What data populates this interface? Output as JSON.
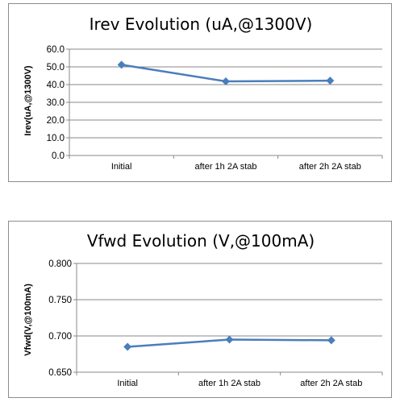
{
  "chart_data": [
    {
      "type": "line",
      "title": "Irev Evolution (uA,@1300V)",
      "xlabel": "",
      "ylabel": "Irev(uA,@1300V)",
      "categories": [
        "Initial",
        "after 1h 2A stab",
        "after 2h 2A stab"
      ],
      "series": [
        {
          "values": [
            51.2,
            41.8,
            42.2
          ]
        }
      ],
      "ylim": [
        0,
        60
      ],
      "yticks": [
        0,
        10,
        20,
        30,
        40,
        50,
        60
      ],
      "ytick_labels": [
        "0.0",
        "10.0",
        "20.0",
        "30.0",
        "40.0",
        "50.0",
        "60.0"
      ],
      "grid": true,
      "legend": "none",
      "color": "#4a7ebb",
      "marker": "diamond"
    },
    {
      "type": "line",
      "title": "Vfwd Evolution (V,@100mA)",
      "xlabel": "",
      "ylabel": "Vfwd(V,@100mA)",
      "categories": [
        "Initial",
        "after 1h 2A stab",
        "after 2h 2A stab"
      ],
      "series": [
        {
          "values": [
            0.685,
            0.695,
            0.694
          ]
        }
      ],
      "ylim": [
        0.65,
        0.8
      ],
      "yticks": [
        0.65,
        0.7,
        0.75,
        0.8
      ],
      "ytick_labels": [
        "0.650",
        "0.700",
        "0.750",
        "0.800"
      ],
      "grid": true,
      "legend": "none",
      "color": "#4a7ebb",
      "marker": "diamond"
    }
  ]
}
